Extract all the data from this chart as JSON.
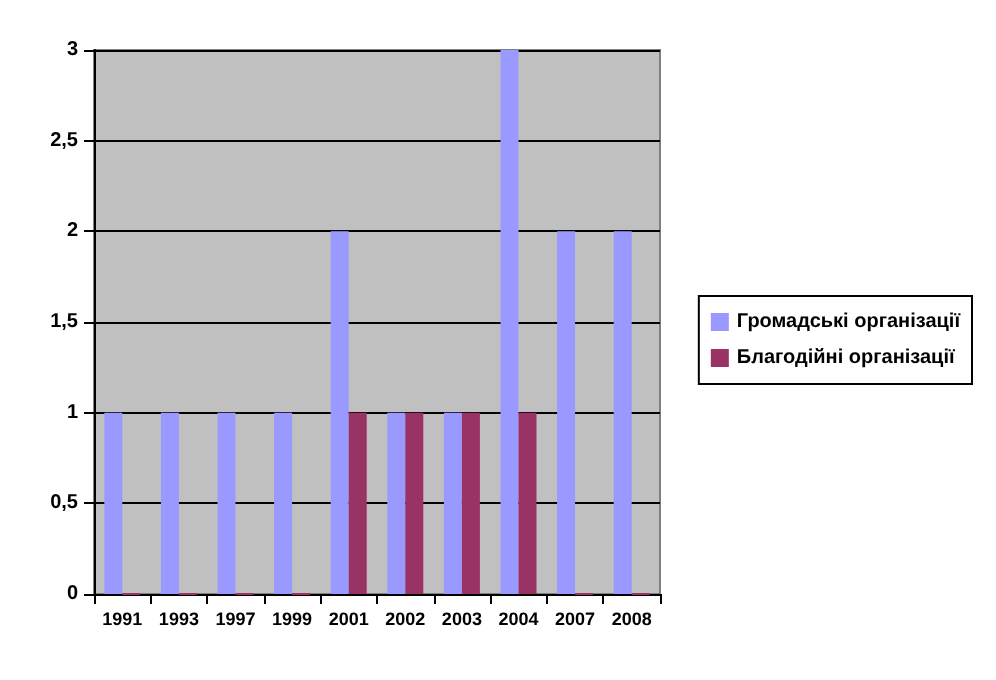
{
  "chart_data": {
    "type": "bar",
    "categories": [
      "1991",
      "1993",
      "1997",
      "1999",
      "2001",
      "2002",
      "2003",
      "2004",
      "2007",
      "2008"
    ],
    "series": [
      {
        "name": "Громадські організації",
        "color": "#9999ff",
        "values": [
          1,
          1,
          1,
          1,
          2,
          1,
          1,
          3,
          2,
          2
        ]
      },
      {
        "name": "Благодійні організації",
        "color": "#993366",
        "values": [
          0,
          0,
          0,
          0,
          1,
          1,
          1,
          1,
          0,
          0
        ]
      }
    ],
    "ylim": [
      0,
      3
    ],
    "yticks": [
      0,
      {
        "value": 0.5,
        "label": "0,5"
      },
      1,
      {
        "value": 1.5,
        "label": "1,5"
      },
      2,
      {
        "value": 2.5,
        "label": "2,5"
      },
      3
    ],
    "grid": "y",
    "legend": "right"
  }
}
